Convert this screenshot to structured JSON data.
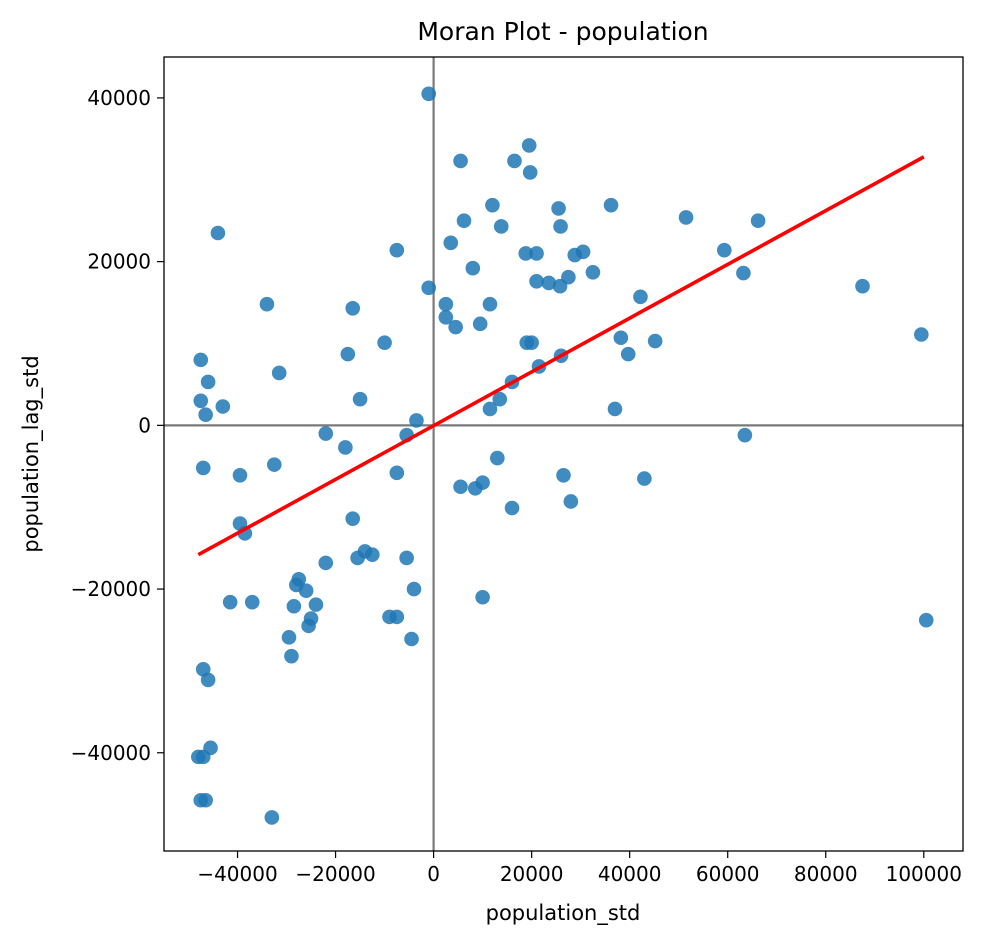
{
  "chart_data": {
    "type": "scatter",
    "title": "Moran Plot - population",
    "xlabel": "population_std",
    "ylabel": "population_lag_std",
    "xlim": [
      -55000,
      108000
    ],
    "ylim": [
      -52000,
      45000
    ],
    "xticks": [
      -40000,
      -20000,
      0,
      20000,
      40000,
      60000,
      80000,
      100000
    ],
    "yticks": [
      -40000,
      -20000,
      0,
      20000,
      40000
    ],
    "xtick_labels": [
      "−40000",
      "−20000",
      "0",
      "20000",
      "40000",
      "60000",
      "80000",
      "100000"
    ],
    "ytick_labels": [
      "−40000",
      "−20000",
      "0",
      "20000",
      "40000"
    ],
    "grid": false,
    "reference_lines": {
      "x": 0,
      "y": 0,
      "color": "#7a7a7a"
    },
    "point_color": "#1f77b4",
    "fit_line": {
      "x": [
        -48000,
        100000
      ],
      "y": [
        -15800,
        32800
      ],
      "color": "#ff0000"
    },
    "points": [
      {
        "x": -1000,
        "y": 40500
      },
      {
        "x": 19500,
        "y": 34200
      },
      {
        "x": 5500,
        "y": 32300
      },
      {
        "x": 16500,
        "y": 32300
      },
      {
        "x": 19700,
        "y": 30900
      },
      {
        "x": 12000,
        "y": 26900
      },
      {
        "x": 36200,
        "y": 26900
      },
      {
        "x": 25500,
        "y": 26500
      },
      {
        "x": 51500,
        "y": 25400
      },
      {
        "x": 6200,
        "y": 25000
      },
      {
        "x": 66200,
        "y": 25000
      },
      {
        "x": 13800,
        "y": 24300
      },
      {
        "x": 25900,
        "y": 24300
      },
      {
        "x": -44000,
        "y": 23500
      },
      {
        "x": 3500,
        "y": 22300
      },
      {
        "x": -7500,
        "y": 21400
      },
      {
        "x": 59300,
        "y": 21400
      },
      {
        "x": 18800,
        "y": 21000
      },
      {
        "x": 21000,
        "y": 21000
      },
      {
        "x": 30500,
        "y": 21200
      },
      {
        "x": 28800,
        "y": 20800
      },
      {
        "x": 8000,
        "y": 19200
      },
      {
        "x": 32500,
        "y": 18700
      },
      {
        "x": 63200,
        "y": 18600
      },
      {
        "x": 27500,
        "y": 18100
      },
      {
        "x": 21000,
        "y": 17600
      },
      {
        "x": 23500,
        "y": 17400
      },
      {
        "x": 25800,
        "y": 17000
      },
      {
        "x": 87500,
        "y": 17000
      },
      {
        "x": -1000,
        "y": 16800
      },
      {
        "x": 42200,
        "y": 15700
      },
      {
        "x": -34000,
        "y": 14800
      },
      {
        "x": 2500,
        "y": 14800
      },
      {
        "x": 11500,
        "y": 14800
      },
      {
        "x": -16500,
        "y": 14300
      },
      {
        "x": 2500,
        "y": 13200
      },
      {
        "x": 9500,
        "y": 12400
      },
      {
        "x": 4500,
        "y": 12000
      },
      {
        "x": 99500,
        "y": 11100
      },
      {
        "x": 38200,
        "y": 10700
      },
      {
        "x": 45200,
        "y": 10300
      },
      {
        "x": -10000,
        "y": 10100
      },
      {
        "x": 19000,
        "y": 10100
      },
      {
        "x": 20000,
        "y": 10100
      },
      {
        "x": -17500,
        "y": 8700
      },
      {
        "x": 39700,
        "y": 8700
      },
      {
        "x": 26000,
        "y": 8500
      },
      {
        "x": -47500,
        "y": 8000
      },
      {
        "x": 21500,
        "y": 7200
      },
      {
        "x": -31500,
        "y": 6400
      },
      {
        "x": -46000,
        "y": 5300
      },
      {
        "x": 16000,
        "y": 5300
      },
      {
        "x": -15000,
        "y": 3200
      },
      {
        "x": 13500,
        "y": 3200
      },
      {
        "x": -47500,
        "y": 3000
      },
      {
        "x": -43000,
        "y": 2300
      },
      {
        "x": 11500,
        "y": 2000
      },
      {
        "x": 37000,
        "y": 2000
      },
      {
        "x": -46500,
        "y": 1300
      },
      {
        "x": -3500,
        "y": 600
      },
      {
        "x": -22000,
        "y": -1000
      },
      {
        "x": -5500,
        "y": -1200
      },
      {
        "x": 63500,
        "y": -1200
      },
      {
        "x": -18000,
        "y": -2700
      },
      {
        "x": 13000,
        "y": -4000
      },
      {
        "x": -32500,
        "y": -4800
      },
      {
        "x": -47000,
        "y": -5200
      },
      {
        "x": -7500,
        "y": -5800
      },
      {
        "x": -39500,
        "y": -6100
      },
      {
        "x": 26500,
        "y": -6100
      },
      {
        "x": 43000,
        "y": -6500
      },
      {
        "x": 10000,
        "y": -7000
      },
      {
        "x": 5500,
        "y": -7500
      },
      {
        "x": 8500,
        "y": -7700
      },
      {
        "x": 28000,
        "y": -9300
      },
      {
        "x": 16000,
        "y": -10100
      },
      {
        "x": -16500,
        "y": -11400
      },
      {
        "x": -39500,
        "y": -12000
      },
      {
        "x": -38500,
        "y": -13200
      },
      {
        "x": -14000,
        "y": -15400
      },
      {
        "x": -12500,
        "y": -15800
      },
      {
        "x": -15500,
        "y": -16200
      },
      {
        "x": -5500,
        "y": -16200
      },
      {
        "x": -22000,
        "y": -16800
      },
      {
        "x": -27500,
        "y": -18800
      },
      {
        "x": -28000,
        "y": -19500
      },
      {
        "x": -4000,
        "y": -20000
      },
      {
        "x": -26000,
        "y": -20200
      },
      {
        "x": 10000,
        "y": -21000
      },
      {
        "x": -41500,
        "y": -21600
      },
      {
        "x": -37000,
        "y": -21600
      },
      {
        "x": -24000,
        "y": -21900
      },
      {
        "x": -28500,
        "y": -22100
      },
      {
        "x": -9000,
        "y": -23400
      },
      {
        "x": -7500,
        "y": -23400
      },
      {
        "x": -25000,
        "y": -23600
      },
      {
        "x": 100500,
        "y": -23800
      },
      {
        "x": -25500,
        "y": -24500
      },
      {
        "x": -29500,
        "y": -25900
      },
      {
        "x": -4500,
        "y": -26100
      },
      {
        "x": -29000,
        "y": -28200
      },
      {
        "x": -47000,
        "y": -29800
      },
      {
        "x": -46000,
        "y": -31100
      },
      {
        "x": -45500,
        "y": -39400
      },
      {
        "x": -48000,
        "y": -40500
      },
      {
        "x": -47000,
        "y": -40500
      },
      {
        "x": -47500,
        "y": -45800
      },
      {
        "x": -46500,
        "y": -45800
      },
      {
        "x": -33000,
        "y": -47900
      }
    ]
  }
}
